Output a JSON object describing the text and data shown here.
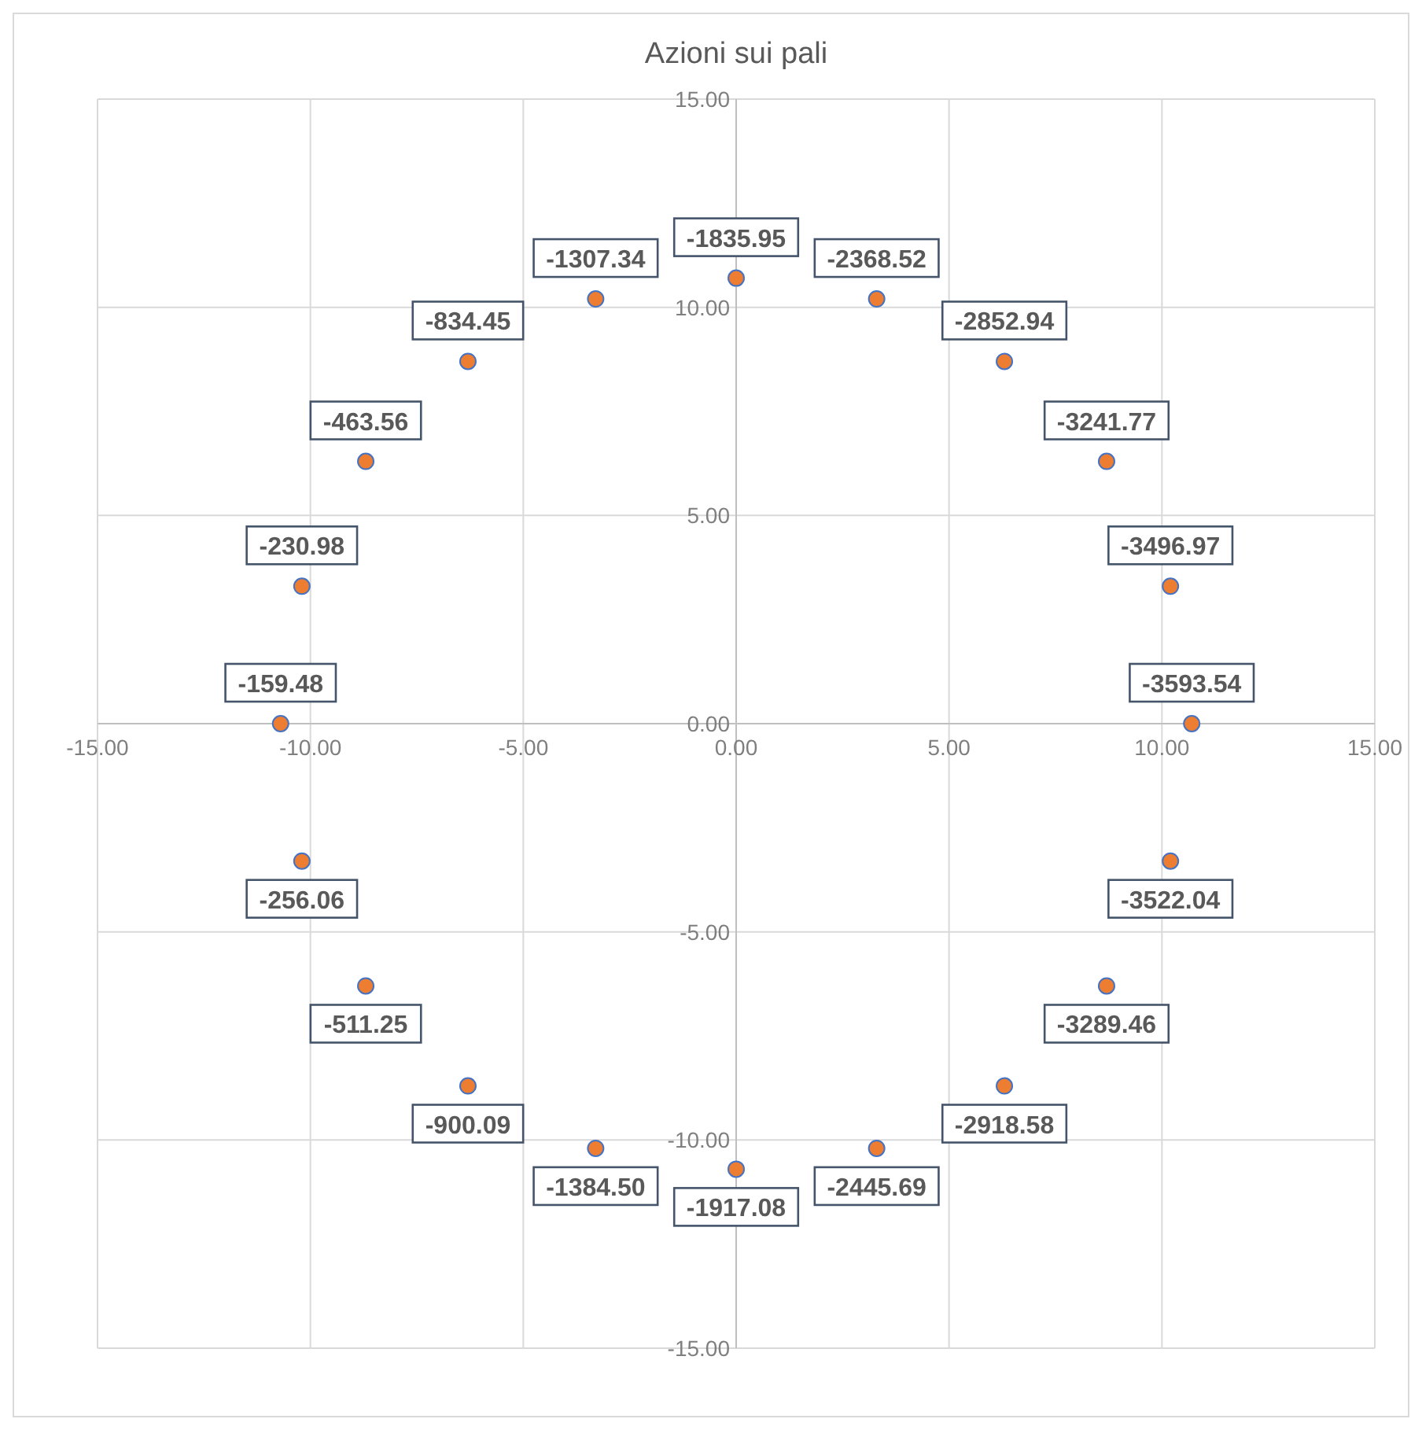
{
  "chart_data": {
    "type": "scatter",
    "title": "Azioni sui pali",
    "x": [
      10.7,
      10.2,
      8.7,
      6.3,
      3.3,
      0,
      -3.3,
      -6.3,
      -8.7,
      -10.2,
      -10.7,
      -10.2,
      -8.7,
      -6.3,
      -3.3,
      0,
      3.3,
      6.3,
      8.7,
      10.2
    ],
    "series": [
      {
        "color": "#ed7d31",
        "values": [
          0,
          3.3,
          6.3,
          8.7,
          10.2,
          10.7,
          10.2,
          8.7,
          6.3,
          3.3,
          0,
          -3.3,
          -6.3,
          -8.7,
          -10.2,
          -10.7,
          -10.2,
          -8.7,
          -6.3,
          -3.3
        ]
      }
    ],
    "xlim": [
      -15,
      15
    ],
    "ylim": [
      -15,
      15
    ],
    "xticks": [
      {
        "value": -15,
        "label": "-15.00"
      },
      {
        "value": -10,
        "label": "-10.00"
      },
      {
        "value": -5,
        "label": "-5.00"
      },
      {
        "value": 0,
        "label": "0.00"
      },
      {
        "value": 5,
        "label": "5.00"
      },
      {
        "value": 10,
        "label": "10.00"
      },
      {
        "value": 15,
        "label": "15.00"
      }
    ],
    "yticks": [
      {
        "value": -15,
        "label": "-15.00"
      },
      {
        "value": -10,
        "label": "-10.00"
      },
      {
        "value": -5,
        "label": "-5.00"
      },
      {
        "value": 0,
        "label": "0.00"
      },
      {
        "value": 5,
        "label": "5.00"
      },
      {
        "value": 10,
        "label": "10.00"
      },
      {
        "value": 15,
        "label": "15.00"
      }
    ],
    "grid": true,
    "marker": "circle",
    "annotations": [
      {
        "text": "-3593.54",
        "x": 10.7,
        "y": 0
      },
      {
        "text": "-3496.97",
        "x": 10.2,
        "y": 3.3
      },
      {
        "text": "-3241.77",
        "x": 8.7,
        "y": 6.3
      },
      {
        "text": "-2852.94",
        "x": 6.3,
        "y": 8.7
      },
      {
        "text": "-2368.52",
        "x": 3.3,
        "y": 10.2
      },
      {
        "text": "-1835.95",
        "x": 0,
        "y": 10.7
      },
      {
        "text": "-1307.34",
        "x": -3.3,
        "y": 10.2
      },
      {
        "text": "-834.45",
        "x": -6.3,
        "y": 8.7
      },
      {
        "text": "-463.56",
        "x": -8.7,
        "y": 6.3
      },
      {
        "text": "-230.98",
        "x": -10.2,
        "y": 3.3
      },
      {
        "text": "-159.48",
        "x": -10.7,
        "y": 0
      },
      {
        "text": "-256.06",
        "x": -10.2,
        "y": -3.3
      },
      {
        "text": "-511.25",
        "x": -8.7,
        "y": -6.3
      },
      {
        "text": "-900.09",
        "x": -6.3,
        "y": -8.7
      },
      {
        "text": "-1384.50",
        "x": -3.3,
        "y": -10.2
      },
      {
        "text": "-1917.08",
        "x": 0,
        "y": -10.7
      },
      {
        "text": "-2445.69",
        "x": 3.3,
        "y": -10.2
      },
      {
        "text": "-2918.58",
        "x": 6.3,
        "y": -8.7
      },
      {
        "text": "-3289.46",
        "x": 8.7,
        "y": -6.3
      },
      {
        "text": "-3522.04",
        "x": 10.2,
        "y": -3.3
      }
    ]
  }
}
